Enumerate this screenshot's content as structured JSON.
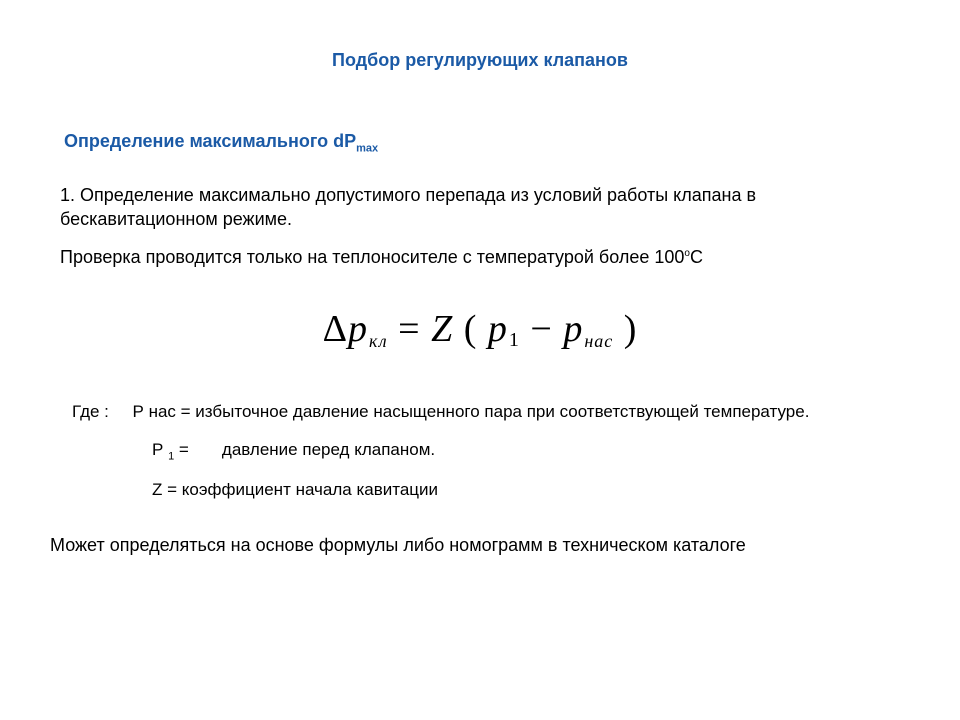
{
  "colors": {
    "accent": "#1b5aa6",
    "text": "#000000",
    "background": "#ffffff"
  },
  "title": "Подбор регулирующих клапанов",
  "subtitle": {
    "prefix": "Определение максимального dP",
    "sub": "max"
  },
  "paragraph1": "1. Определение максимально допустимого перепада из условий работы клапана в бескавитационном режиме.",
  "paragraph2": {
    "before": "Проверка проводится только на теплоносителе с температурой более 100",
    "sup": "о",
    "after": "С"
  },
  "formula": {
    "delta": "Δ",
    "p": "p",
    "sub_kl": "кл",
    "eq": " = ",
    "Z": "Z",
    "open": " ( ",
    "p1": "p",
    "sub1": "1",
    "minus": " − ",
    "p2": "p",
    "sub_nas": "нас",
    "close": " )"
  },
  "defs": {
    "where": "Где :",
    "line1_left": "Р нас =",
    "line1_right": " избыточное давление насыщенного пара при соответствующей температуре.",
    "line2_left_a": "Р ",
    "line2_sub": "1",
    "line2_left_b": " =",
    "line2_right": "давление перед клапаном.",
    "line3_left": "Z =",
    "line3_right": " коэффициент начала кавитации"
  },
  "final": "Может определяться на основе формулы либо номограмм в техническом каталоге"
}
